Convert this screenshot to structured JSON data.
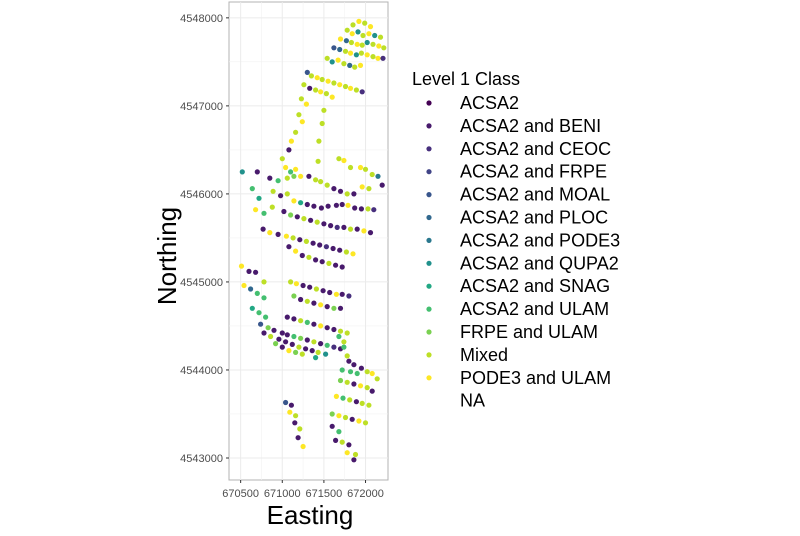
{
  "chart_data": {
    "type": "scatter",
    "xlabel": "Easting",
    "ylabel": "Northing",
    "xlim": [
      670360,
      672270
    ],
    "ylim": [
      4542750,
      4548180
    ],
    "x_ticks": [
      670500,
      671000,
      671500,
      672000
    ],
    "x_tick_labels": [
      "670500",
      "671000",
      "671500",
      "672000"
    ],
    "y_ticks": [
      4543000,
      4544000,
      4545000,
      4546000,
      4547000,
      4548000
    ],
    "y_tick_labels": [
      "4543000",
      "4544000",
      "4545000",
      "4546000",
      "4547000",
      "4548000"
    ],
    "grid": true,
    "legend": {
      "title": "Level 1 Class",
      "position": "right",
      "entries": [
        {
          "label": "ACSA2",
          "color": "#440154"
        },
        {
          "label": "ACSA2 and BENI",
          "color": "#481a6c"
        },
        {
          "label": "ACSA2 and CEOC",
          "color": "#472f7d"
        },
        {
          "label": "ACSA2 and FRPE",
          "color": "#414487"
        },
        {
          "label": "ACSA2 and MOAL",
          "color": "#39568c"
        },
        {
          "label": "ACSA2 and PLOC",
          "color": "#31688e"
        },
        {
          "label": "ACSA2 and PODE3",
          "color": "#2a788e"
        },
        {
          "label": "ACSA2 and QUPA2",
          "color": "#21918c"
        },
        {
          "label": "ACSA2 and SNAG",
          "color": "#22a884"
        },
        {
          "label": "ACSA2 and ULAM",
          "color": "#44bf70"
        },
        {
          "label": "FRPE and ULAM",
          "color": "#7ad151"
        },
        {
          "label": "Mixed",
          "color": "#bddf26"
        },
        {
          "label": "PODE3 and ULAM",
          "color": "#fde725"
        },
        {
          "label": "NA",
          "color": "#7f7f7f"
        }
      ]
    },
    "points": [
      [
        671850,
        4547920,
        11
      ],
      [
        671920,
        4547960,
        12
      ],
      [
        671990,
        4547940,
        11
      ],
      [
        672060,
        4547900,
        12
      ],
      [
        671780,
        4547860,
        11
      ],
      [
        671840,
        4547820,
        12
      ],
      [
        671910,
        4547840,
        7
      ],
      [
        671970,
        4547800,
        11
      ],
      [
        672040,
        4547820,
        12
      ],
      [
        672110,
        4547800,
        7
      ],
      [
        672180,
        4547780,
        11
      ],
      [
        671700,
        4547760,
        12
      ],
      [
        671770,
        4547740,
        5
      ],
      [
        671830,
        4547720,
        11
      ],
      [
        671900,
        4547700,
        12
      ],
      [
        671960,
        4547690,
        11
      ],
      [
        672020,
        4547720,
        7
      ],
      [
        672090,
        4547700,
        11
      ],
      [
        672160,
        4547680,
        12
      ],
      [
        672220,
        4547660,
        11
      ],
      [
        671620,
        4547660,
        4
      ],
      [
        671690,
        4547640,
        5
      ],
      [
        671760,
        4547620,
        11
      ],
      [
        671820,
        4547600,
        12
      ],
      [
        671890,
        4547580,
        7
      ],
      [
        671950,
        4547600,
        11
      ],
      [
        672020,
        4547580,
        12
      ],
      [
        672090,
        4547560,
        11
      ],
      [
        672150,
        4547540,
        12
      ],
      [
        672210,
        4547540,
        2
      ],
      [
        671540,
        4547540,
        11
      ],
      [
        671600,
        4547500,
        7
      ],
      [
        671670,
        4547520,
        12
      ],
      [
        671740,
        4547480,
        11
      ],
      [
        671810,
        4547460,
        5
      ],
      [
        671870,
        4547440,
        11
      ],
      [
        671940,
        4547460,
        12
      ],
      [
        671300,
        4547380,
        4
      ],
      [
        671350,
        4547340,
        11
      ],
      [
        671420,
        4547320,
        12
      ],
      [
        671480,
        4547300,
        11
      ],
      [
        671550,
        4547280,
        12
      ],
      [
        671620,
        4547260,
        11
      ],
      [
        671690,
        4547240,
        12
      ],
      [
        671760,
        4547220,
        11
      ],
      [
        671820,
        4547200,
        12
      ],
      [
        671890,
        4547180,
        11
      ],
      [
        671960,
        4547160,
        2
      ],
      [
        671260,
        4547240,
        11
      ],
      [
        671330,
        4547200,
        1
      ],
      [
        671400,
        4547180,
        11
      ],
      [
        671460,
        4547160,
        12
      ],
      [
        671530,
        4547140,
        11
      ],
      [
        671600,
        4547100,
        12
      ],
      [
        671230,
        4547080,
        11
      ],
      [
        671290,
        4547020,
        12
      ],
      [
        671500,
        4546950,
        11
      ],
      [
        671200,
        4546900,
        11
      ],
      [
        671240,
        4546820,
        12
      ],
      [
        671480,
        4546800,
        11
      ],
      [
        671160,
        4546700,
        11
      ],
      [
        671110,
        4546600,
        12
      ],
      [
        671440,
        4546600,
        11
      ],
      [
        671080,
        4546500,
        1
      ],
      [
        671000,
        4546400,
        11
      ],
      [
        671040,
        4546300,
        12
      ],
      [
        671100,
        4546250,
        9
      ],
      [
        671160,
        4546280,
        12
      ],
      [
        671430,
        4546370,
        11
      ],
      [
        671680,
        4546400,
        11
      ],
      [
        671740,
        4546380,
        12
      ],
      [
        671820,
        4546300,
        11
      ],
      [
        671940,
        4546300,
        12
      ],
      [
        672000,
        4546280,
        11
      ],
      [
        672080,
        4546220,
        11
      ],
      [
        672150,
        4546200,
        6
      ],
      [
        670520,
        4546250,
        7
      ],
      [
        670700,
        4546250,
        1
      ],
      [
        670850,
        4546180,
        1
      ],
      [
        670950,
        4546150,
        9
      ],
      [
        671060,
        4546180,
        11
      ],
      [
        671140,
        4546200,
        10
      ],
      [
        671220,
        4546200,
        12
      ],
      [
        671320,
        4546200,
        1
      ],
      [
        671400,
        4546160,
        11
      ],
      [
        671460,
        4546140,
        11
      ],
      [
        671540,
        4546100,
        11
      ],
      [
        671620,
        4546060,
        1
      ],
      [
        671700,
        4546030,
        1
      ],
      [
        671780,
        4546000,
        11
      ],
      [
        671860,
        4546000,
        1
      ],
      [
        671960,
        4546080,
        12
      ],
      [
        672040,
        4546060,
        11
      ],
      [
        672200,
        4546100,
        1
      ],
      [
        670640,
        4546060,
        9
      ],
      [
        670720,
        4545950,
        8
      ],
      [
        670890,
        4546030,
        11
      ],
      [
        670980,
        4545980,
        1
      ],
      [
        671060,
        4546000,
        11
      ],
      [
        671140,
        4545920,
        12
      ],
      [
        671220,
        4545900,
        8
      ],
      [
        671300,
        4545880,
        1
      ],
      [
        671380,
        4545860,
        1
      ],
      [
        671470,
        4545840,
        1
      ],
      [
        671550,
        4545860,
        1
      ],
      [
        671650,
        4545870,
        1
      ],
      [
        671720,
        4545880,
        1
      ],
      [
        671790,
        4545870,
        12
      ],
      [
        671870,
        4545840,
        1
      ],
      [
        671950,
        4545830,
        1
      ],
      [
        672030,
        4545830,
        11
      ],
      [
        672100,
        4545820,
        2
      ],
      [
        670680,
        4545820,
        12
      ],
      [
        670780,
        4545780,
        9
      ],
      [
        670880,
        4545850,
        11
      ],
      [
        671020,
        4545800,
        1
      ],
      [
        671100,
        4545760,
        10
      ],
      [
        671180,
        4545740,
        1
      ],
      [
        671260,
        4545720,
        11
      ],
      [
        671340,
        4545700,
        1
      ],
      [
        671420,
        4545680,
        11
      ],
      [
        671500,
        4545660,
        1
      ],
      [
        671580,
        4545640,
        1
      ],
      [
        671660,
        4545620,
        2
      ],
      [
        671740,
        4545620,
        1
      ],
      [
        671820,
        4545600,
        11
      ],
      [
        671900,
        4545600,
        1
      ],
      [
        671980,
        4545580,
        12
      ],
      [
        672060,
        4545560,
        1
      ],
      [
        670770,
        4545600,
        1
      ],
      [
        670850,
        4545560,
        12
      ],
      [
        670950,
        4545540,
        1
      ],
      [
        671050,
        4545520,
        12
      ],
      [
        671130,
        4545500,
        11
      ],
      [
        671210,
        4545480,
        1
      ],
      [
        671290,
        4545460,
        11
      ],
      [
        671370,
        4545440,
        1
      ],
      [
        671450,
        4545420,
        1
      ],
      [
        671530,
        4545400,
        2
      ],
      [
        671610,
        4545380,
        1
      ],
      [
        671690,
        4545360,
        1
      ],
      [
        671770,
        4545340,
        11
      ],
      [
        671850,
        4545320,
        12
      ],
      [
        671080,
        4545400,
        1
      ],
      [
        671160,
        4545350,
        12
      ],
      [
        671240,
        4545300,
        1
      ],
      [
        671320,
        4545280,
        11
      ],
      [
        671400,
        4545250,
        1
      ],
      [
        671480,
        4545230,
        1
      ],
      [
        671560,
        4545210,
        11
      ],
      [
        671640,
        4545190,
        1
      ],
      [
        671720,
        4545170,
        1
      ],
      [
        670510,
        4545180,
        12
      ],
      [
        670600,
        4545120,
        1
      ],
      [
        670680,
        4545110,
        1
      ],
      [
        670780,
        4545000,
        11
      ],
      [
        671100,
        4545000,
        11
      ],
      [
        671170,
        4544980,
        12
      ],
      [
        671250,
        4544960,
        1
      ],
      [
        671330,
        4544940,
        1
      ],
      [
        671410,
        4544920,
        11
      ],
      [
        671490,
        4544900,
        1
      ],
      [
        671570,
        4544880,
        1
      ],
      [
        671650,
        4544860,
        12
      ],
      [
        671720,
        4544860,
        1
      ],
      [
        671800,
        4544840,
        2
      ],
      [
        670540,
        4544960,
        12
      ],
      [
        670620,
        4544920,
        5
      ],
      [
        670700,
        4544870,
        9
      ],
      [
        670780,
        4544820,
        9
      ],
      [
        671140,
        4544840,
        10
      ],
      [
        671220,
        4544800,
        1
      ],
      [
        671300,
        4544780,
        11
      ],
      [
        671380,
        4544760,
        1
      ],
      [
        671460,
        4544740,
        12
      ],
      [
        671540,
        4544720,
        1
      ],
      [
        671620,
        4544700,
        10
      ],
      [
        671700,
        4544700,
        1
      ],
      [
        670640,
        4544700,
        8
      ],
      [
        670720,
        4544650,
        9
      ],
      [
        670800,
        4544600,
        9
      ],
      [
        671060,
        4544600,
        1
      ],
      [
        671140,
        4544580,
        1
      ],
      [
        671220,
        4544560,
        11
      ],
      [
        671300,
        4544540,
        9
      ],
      [
        671380,
        4544520,
        1
      ],
      [
        671460,
        4544500,
        12
      ],
      [
        671540,
        4544480,
        1
      ],
      [
        671620,
        4544460,
        1
      ],
      [
        671700,
        4544440,
        11
      ],
      [
        671780,
        4544420,
        11
      ],
      [
        670740,
        4544520,
        4
      ],
      [
        670830,
        4544480,
        10
      ],
      [
        670900,
        4544450,
        1
      ],
      [
        671000,
        4544420,
        1
      ],
      [
        671060,
        4544400,
        1
      ],
      [
        671140,
        4544380,
        9
      ],
      [
        671220,
        4544360,
        10
      ],
      [
        671300,
        4544340,
        1
      ],
      [
        671380,
        4544320,
        11
      ],
      [
        671460,
        4544300,
        1
      ],
      [
        671540,
        4544280,
        9
      ],
      [
        671620,
        4544260,
        2
      ],
      [
        671700,
        4544240,
        1
      ],
      [
        670780,
        4544420,
        1
      ],
      [
        670860,
        4544380,
        11
      ],
      [
        670960,
        4544350,
        1
      ],
      [
        671040,
        4544320,
        1
      ],
      [
        671120,
        4544290,
        1
      ],
      [
        671200,
        4544260,
        11
      ],
      [
        671280,
        4544240,
        1
      ],
      [
        671360,
        4544220,
        1
      ],
      [
        671430,
        4544200,
        11
      ],
      [
        671520,
        4544180,
        7
      ],
      [
        671680,
        4544380,
        9
      ],
      [
        671740,
        4544320,
        11
      ],
      [
        670920,
        4544300,
        10
      ],
      [
        671000,
        4544260,
        1
      ],
      [
        671080,
        4544220,
        12
      ],
      [
        671160,
        4544200,
        10
      ],
      [
        671240,
        4544180,
        11
      ],
      [
        671400,
        4544140,
        8
      ],
      [
        671740,
        4544260,
        9
      ],
      [
        671780,
        4544160,
        11
      ],
      [
        671800,
        4544100,
        1
      ],
      [
        671860,
        4544060,
        1
      ],
      [
        671720,
        4544000,
        9
      ],
      [
        671820,
        4543980,
        9
      ],
      [
        671900,
        4543960,
        9
      ],
      [
        671950,
        4544020,
        1
      ],
      [
        672020,
        4543980,
        11
      ],
      [
        672080,
        4543960,
        12
      ],
      [
        672140,
        4543900,
        11
      ],
      [
        671700,
        4543880,
        10
      ],
      [
        671780,
        4543860,
        11
      ],
      [
        671860,
        4543840,
        1
      ],
      [
        671940,
        4543820,
        12
      ],
      [
        672020,
        4543800,
        11
      ],
      [
        672080,
        4543760,
        1
      ],
      [
        671650,
        4543700,
        12
      ],
      [
        671730,
        4543680,
        9
      ],
      [
        671810,
        4543660,
        11
      ],
      [
        671890,
        4543640,
        1
      ],
      [
        671960,
        4543620,
        11
      ],
      [
        672040,
        4543600,
        11
      ],
      [
        671600,
        4543500,
        10
      ],
      [
        671680,
        4543480,
        12
      ],
      [
        671760,
        4543460,
        11
      ],
      [
        671840,
        4543440,
        1
      ],
      [
        671920,
        4543420,
        12
      ],
      [
        672000,
        4543400,
        11
      ],
      [
        671040,
        4543630,
        4
      ],
      [
        671110,
        4543600,
        1
      ],
      [
        671090,
        4543520,
        12
      ],
      [
        671160,
        4543480,
        11
      ],
      [
        671150,
        4543400,
        1
      ],
      [
        671210,
        4543330,
        11
      ],
      [
        671190,
        4543230,
        1
      ],
      [
        671250,
        4543130,
        12
      ],
      [
        671600,
        4543360,
        1
      ],
      [
        671680,
        4543300,
        9
      ],
      [
        671640,
        4543200,
        1
      ],
      [
        671720,
        4543180,
        11
      ],
      [
        671800,
        4543150,
        1
      ],
      [
        671780,
        4543060,
        12
      ],
      [
        671880,
        4543040,
        11
      ],
      [
        671860,
        4542980,
        1
      ]
    ]
  }
}
